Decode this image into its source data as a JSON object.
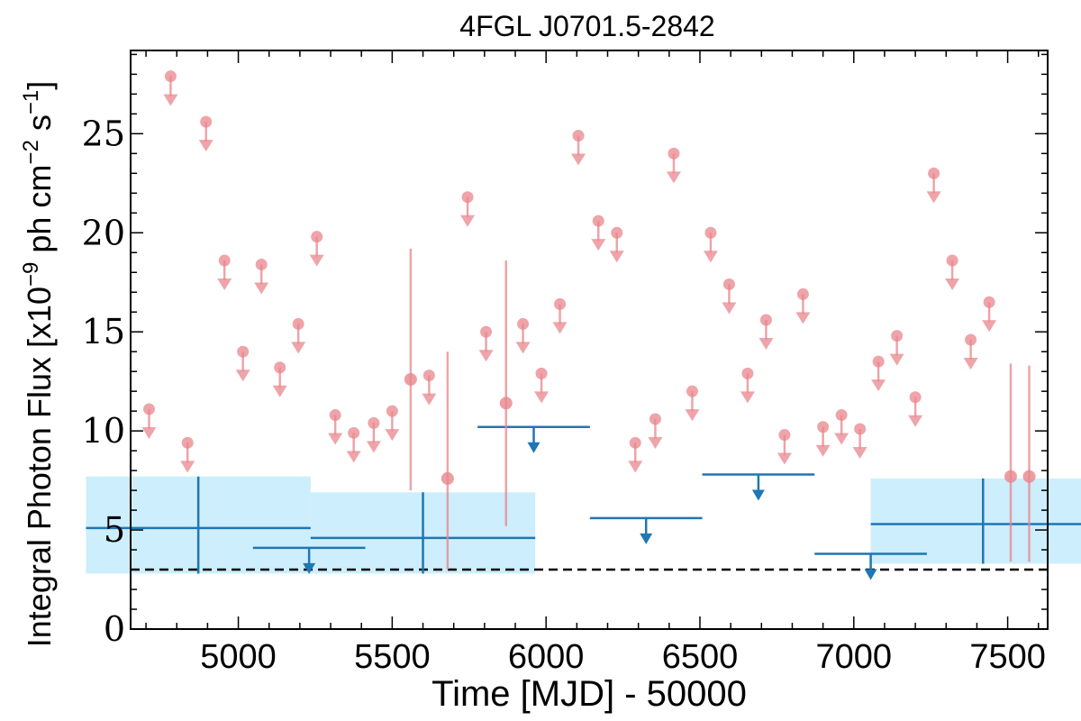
{
  "chart_data": {
    "type": "scatter",
    "title": "4FGL J0701.5-2842",
    "xlabel": "Time [MJD] - 50000",
    "ylabel": "Integral Photon Flux [x10",
    "ylabel_sup1": "−9",
    "ylabel_mid": " ph cm",
    "ylabel_sup2": "−2",
    "ylabel_end": " s",
    "ylabel_sup3": "−1",
    "ylabel_close": "]",
    "xlim": [
      4650,
      7630
    ],
    "ylim": [
      0,
      29.2
    ],
    "xticks": [
      5000,
      5500,
      6000,
      6500,
      7000,
      7500
    ],
    "yticks": [
      0,
      5,
      10,
      15,
      20,
      25
    ],
    "xtick_labels": [
      "5000",
      "5500",
      "6000",
      "6500",
      "7000",
      "7500"
    ],
    "ytick_labels": [
      "0",
      "5",
      "10",
      "15",
      "20",
      "25"
    ],
    "reference_line": {
      "y": 3.0,
      "style": "dashed",
      "color": "#000000"
    },
    "colors": {
      "monthly": "#e8868c",
      "yearly": "#1f77b4",
      "yearly_band": "#cdeefc"
    },
    "series": [
      {
        "kind": "monthly_upper_limits",
        "x": [
          4710,
          4780,
          4835,
          4895,
          4955,
          5015,
          5075,
          5135,
          5195,
          5255,
          5315,
          5375,
          5440,
          5500,
          5620,
          5745,
          5805,
          5925,
          5985,
          6045,
          6105,
          6170,
          6230,
          6290,
          6355,
          6415,
          6475,
          6535,
          6595,
          6655,
          6715,
          6775,
          6835,
          6900,
          6960,
          7020,
          7080,
          7140,
          7200,
          7260,
          7320,
          7380,
          7440
        ],
        "y": [
          11.1,
          27.9,
          9.4,
          25.6,
          18.6,
          14.0,
          18.4,
          13.2,
          15.4,
          19.8,
          10.8,
          9.9,
          10.4,
          11.0,
          12.8,
          21.8,
          15.0,
          15.4,
          12.9,
          16.4,
          24.9,
          20.6,
          20.0,
          9.4,
          10.6,
          24.0,
          12.0,
          20.0,
          17.4,
          12.9,
          15.6,
          9.8,
          16.9,
          10.2,
          10.8,
          10.1,
          13.5,
          14.8,
          11.7,
          23.0,
          18.6,
          14.6,
          16.5
        ]
      },
      {
        "kind": "monthly_detections",
        "x": [
          5560,
          5680,
          5870,
          7510,
          7570
        ],
        "y": [
          12.6,
          7.6,
          11.4,
          7.7,
          7.7
        ],
        "yerr_low": [
          5.6,
          4.6,
          6.2,
          4.3,
          4.3
        ],
        "yerr_high": [
          6.6,
          6.4,
          7.2,
          5.7,
          5.6
        ]
      },
      {
        "kind": "yearly_detections",
        "x": [
          4870,
          5600,
          7420
        ],
        "xerr": [
          365,
          365,
          365
        ],
        "y": [
          5.1,
          4.6,
          5.3
        ],
        "yerr_low": [
          2.3,
          1.8,
          2.0
        ],
        "yerr_high": [
          2.6,
          2.3,
          2.3
        ]
      },
      {
        "kind": "yearly_upper_limits",
        "x": [
          5230,
          5960,
          6325,
          6690,
          7055
        ],
        "xerr": [
          182.5,
          182.5,
          182.5,
          182.5,
          182.5
        ],
        "y": [
          4.1,
          10.2,
          5.6,
          7.8,
          3.8
        ]
      }
    ]
  }
}
